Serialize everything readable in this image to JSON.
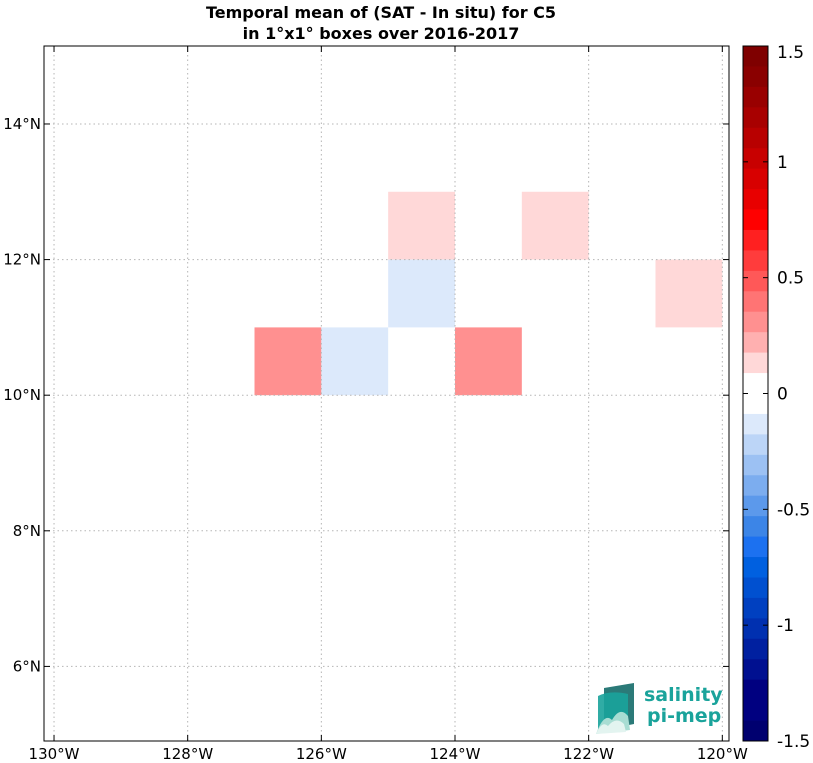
{
  "chart_data": {
    "type": "heatmap",
    "title_lines": [
      "Temporal mean of (SAT - In situ) for C5",
      "in 1°x1° boxes over 2016-2017"
    ],
    "xlim": [
      -130.15,
      -119.9
    ],
    "ylim": [
      4.9,
      15.15
    ],
    "x_ticks": [
      {
        "value": -130,
        "label": "130°W"
      },
      {
        "value": -128,
        "label": "128°W"
      },
      {
        "value": -126,
        "label": "126°W"
      },
      {
        "value": -124,
        "label": "124°W"
      },
      {
        "value": -122,
        "label": "122°W"
      },
      {
        "value": -120,
        "label": "120°W"
      }
    ],
    "y_ticks": [
      {
        "value": 6,
        "label": "6°N"
      },
      {
        "value": 8,
        "label": "8°N"
      },
      {
        "value": 10,
        "label": "10°N"
      },
      {
        "value": 12,
        "label": "12°N"
      },
      {
        "value": 14,
        "label": "14°N"
      }
    ],
    "grid": true,
    "cells": [
      {
        "lon": [
          -125,
          -124
        ],
        "lat": [
          12,
          13
        ],
        "value": 0.15
      },
      {
        "lon": [
          -123,
          -122
        ],
        "lat": [
          12,
          13
        ],
        "value": 0.15
      },
      {
        "lon": [
          -121,
          -120
        ],
        "lat": [
          11,
          12
        ],
        "value": 0.15
      },
      {
        "lon": [
          -125,
          -124
        ],
        "lat": [
          11,
          12
        ],
        "value": -0.15
      },
      {
        "lon": [
          -127,
          -126
        ],
        "lat": [
          10,
          11
        ],
        "value": 0.3
      },
      {
        "lon": [
          -126,
          -125
        ],
        "lat": [
          10,
          11
        ],
        "value": -0.15
      },
      {
        "lon": [
          -124,
          -123
        ],
        "lat": [
          10,
          11
        ],
        "value": 0.3
      }
    ],
    "colorbar": {
      "range": [
        -1.5,
        1.5
      ],
      "ticks": [
        {
          "value": 1.5,
          "label": "1.5"
        },
        {
          "value": 1,
          "label": "1"
        },
        {
          "value": 0.5,
          "label": "0.5"
        },
        {
          "value": 0,
          "label": "0"
        },
        {
          "value": -0.5,
          "label": "-0.5"
        },
        {
          "value": -1,
          "label": "-1"
        },
        {
          "value": -1.5,
          "label": "-1.5"
        }
      ],
      "colors_top_to_bottom": [
        "#7f0000",
        "#8a0000",
        "#990000",
        "#a80000",
        "#b80000",
        "#c80000",
        "#d80000",
        "#e80000",
        "#ff0000",
        "#ff2020",
        "#ff3c3c",
        "#ff5858",
        "#ff7474",
        "#ff9090",
        "#ffb0b0",
        "#ffd8d8",
        "#ffffff",
        "#ffffff",
        "#dce9fb",
        "#bcd5f7",
        "#9cc1f3",
        "#7cadef",
        "#5c99eb",
        "#3c85e7",
        "#1c71f0",
        "#0060e0",
        "#0050d0",
        "#0040c0",
        "#0030b0",
        "#0020a0",
        "#001090",
        "#000080",
        "#000080",
        "#00006f"
      ]
    },
    "logo_lines": [
      "salinity",
      "pi-mep"
    ],
    "logo_colors": [
      "#1aa39b",
      "#2b7a78",
      "#a8ddd3"
    ]
  }
}
